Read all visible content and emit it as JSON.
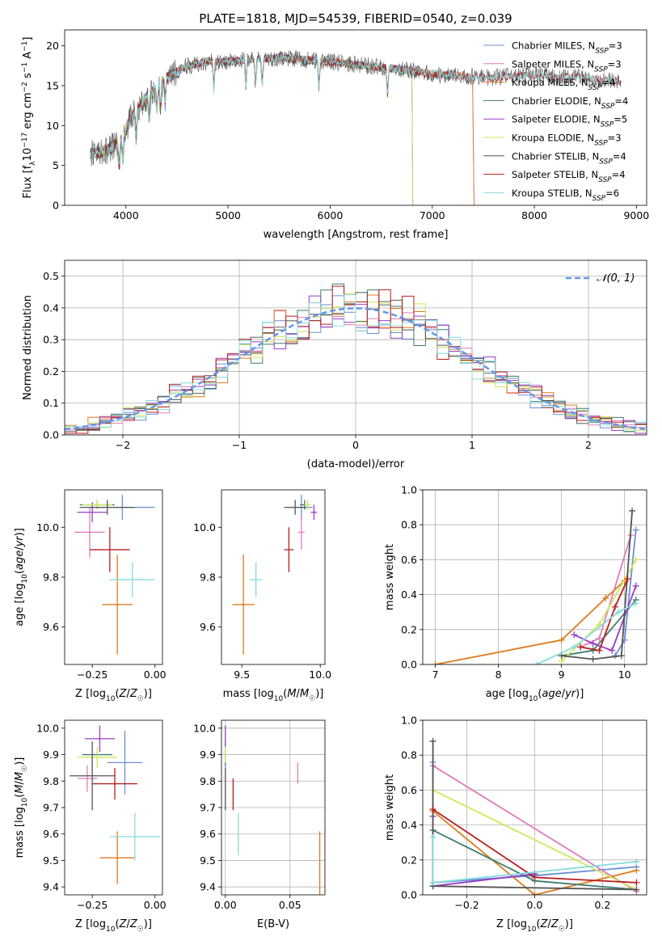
{
  "figure": {
    "title": "PLATE=1818, MJD=54539, FIBERID=0540, z=0.039"
  },
  "colors": {
    "Chabrier MILES": "#6a8fd2",
    "Salpeter MILES": "#e27bbd",
    "Kroupa MILES": "#e07a1e",
    "Chabrier ELODIE": "#3e7a6e",
    "Salpeter ELODIE": "#9a3cc8",
    "Kroupa ELODIE": "#cfe85a",
    "Chabrier STELIB": "#555555",
    "Salpeter STELIB": "#b81e1e",
    "Kroupa STELIB": "#84dcdc",
    "normal": "#6495ed"
  },
  "chart_data": [
    {
      "panel": "spectrum",
      "type": "line",
      "xlabel": "wavelength [Angstrom, rest frame]",
      "ylabel": "Flux [f_λ 10^-17 erg cm^-2 s^-1 A^-1]",
      "xlim": [
        3400,
        9100
      ],
      "ylim": [
        0,
        22
      ],
      "xticks": [
        "4000",
        "5000",
        "6000",
        "7000",
        "8000",
        "9000"
      ],
      "yticks": [
        "0",
        "5",
        "10",
        "15",
        "20"
      ],
      "legend_position": "top-right",
      "legend": [
        {
          "name": "Chabrier MILES",
          "nssp": "3"
        },
        {
          "name": "Salpeter MILES",
          "nssp": "3"
        },
        {
          "name": "Kroupa MILES",
          "nssp": "4"
        },
        {
          "name": "Chabrier ELODIE",
          "nssp": "4"
        },
        {
          "name": "Salpeter ELODIE",
          "nssp": "5"
        },
        {
          "name": "Kroupa ELODIE",
          "nssp": "3"
        },
        {
          "name": "Chabrier STELIB",
          "nssp": "4"
        },
        {
          "name": "Salpeter STELIB",
          "nssp": "4"
        },
        {
          "name": "Kroupa STELIB",
          "nssp": "6"
        }
      ],
      "continuum": {
        "x": [
          3650,
          3800,
          3950,
          4050,
          4200,
          4400,
          4600,
          4800,
          5000,
          5200,
          5500,
          6000,
          6500,
          7000,
          7500,
          8000,
          8500,
          8850
        ],
        "y": [
          6.5,
          6.8,
          8.0,
          11.0,
          13.5,
          16.0,
          17.5,
          18.0,
          18.0,
          18.3,
          18.5,
          18.0,
          17.3,
          16.5,
          16.0,
          16.3,
          16.0,
          15.5
        ]
      },
      "xrange_by_model": {
        "MILES": [
          3650,
          7400
        ],
        "ELODIE": [
          3650,
          6800
        ],
        "STELIB": [
          3650,
          8850
        ]
      }
    },
    {
      "panel": "residual-histogram",
      "type": "histogram",
      "xlabel": "(data-model)/error",
      "ylabel": "Normed distribution",
      "xlim": [
        -2.5,
        2.5
      ],
      "ylim": [
        0,
        0.55
      ],
      "xticks": [
        "−2",
        "−1",
        "0",
        "1",
        "2"
      ],
      "yticks": [
        "0.0",
        "0.1",
        "0.2",
        "0.3",
        "0.4",
        "0.5"
      ],
      "grid": true,
      "legend_position": "top-right",
      "legend_label": "𝒩(0, 1)",
      "bin_width": 0.1,
      "reference_curve": "normal(0,1)"
    },
    {
      "panel": "age-vs-Z",
      "type": "errorbar",
      "xlabel": "Z [log10(Z/Z☉)]",
      "ylabel": "age  [log10(age/yr)]",
      "xlim": [
        -0.36,
        0.03
      ],
      "ylim": [
        9.45,
        10.15
      ],
      "xticks": [
        "−0.25",
        "0.00"
      ],
      "yticks": [
        "9.6",
        "9.8",
        "10.0"
      ],
      "points": [
        {
          "model": "Chabrier MILES",
          "x": -0.13,
          "xerr": 0.13,
          "y": 10.08,
          "yerr": 0.05
        },
        {
          "model": "Salpeter MILES",
          "x": -0.26,
          "xerr": 0.06,
          "y": 9.98,
          "yerr": 0.1
        },
        {
          "model": "Kroupa MILES",
          "x": -0.15,
          "xerr": 0.06,
          "y": 9.69,
          "yerr": 0.2
        },
        {
          "model": "Chabrier ELODIE",
          "x": -0.23,
          "xerr": 0.07,
          "y": 10.09,
          "yerr": 0.02
        },
        {
          "model": "Salpeter ELODIE",
          "x": -0.25,
          "xerr": 0.06,
          "y": 10.06,
          "yerr": 0.04
        },
        {
          "model": "Kroupa ELODIE",
          "x": -0.23,
          "xerr": 0.06,
          "y": 10.09,
          "yerr": 0.02
        },
        {
          "model": "Chabrier STELIB",
          "x": -0.19,
          "xerr": 0.11,
          "y": 10.08,
          "yerr": 0.03
        },
        {
          "model": "Salpeter STELIB",
          "x": -0.18,
          "xerr": 0.08,
          "y": 9.91,
          "yerr": 0.09
        },
        {
          "model": "Kroupa STELIB",
          "x": -0.09,
          "xerr": 0.09,
          "y": 9.79,
          "yerr": 0.07
        }
      ]
    },
    {
      "panel": "age-vs-mass",
      "type": "errorbar",
      "xlabel": "mass [log10(M/M☉)]",
      "ylabel": "",
      "xlim": [
        9.37,
        10.03
      ],
      "ylim": [
        9.45,
        10.15
      ],
      "xticks": [
        "9.5",
        "10.0"
      ],
      "yticks": [
        "9.6",
        "9.8",
        "10.0"
      ],
      "points": [
        {
          "model": "Chabrier MILES",
          "x": 9.88,
          "xerr": 0.07,
          "y": 10.08,
          "yerr": 0.05
        },
        {
          "model": "Salpeter MILES",
          "x": 9.88,
          "xerr": 0.02,
          "y": 9.98,
          "yerr": 0.07
        },
        {
          "model": "Kroupa MILES",
          "x": 9.51,
          "xerr": 0.07,
          "y": 9.69,
          "yerr": 0.2
        },
        {
          "model": "Chabrier ELODIE",
          "x": 9.9,
          "xerr": 0.03,
          "y": 10.09,
          "yerr": 0.02
        },
        {
          "model": "Salpeter ELODIE",
          "x": 9.96,
          "xerr": 0.02,
          "y": 10.06,
          "yerr": 0.03
        },
        {
          "model": "Kroupa ELODIE",
          "x": 9.92,
          "xerr": 0.02,
          "y": 10.09,
          "yerr": 0.02
        },
        {
          "model": "Chabrier STELIB",
          "x": 9.84,
          "xerr": 0.07,
          "y": 10.08,
          "yerr": 0.03
        },
        {
          "model": "Salpeter STELIB",
          "x": 9.8,
          "xerr": 0.03,
          "y": 9.91,
          "yerr": 0.09
        },
        {
          "model": "Kroupa STELIB",
          "x": 9.59,
          "xerr": 0.04,
          "y": 9.79,
          "yerr": 0.07
        }
      ]
    },
    {
      "panel": "mass-weight-vs-age",
      "type": "line",
      "xlabel": "age  [log10(age/yr)]",
      "ylabel": "mass weight",
      "xlim": [
        6.8,
        10.35
      ],
      "ylim": [
        0,
        1.0
      ],
      "xticks": [
        "7",
        "8",
        "9",
        "10"
      ],
      "yticks": [
        "0.0",
        "0.2",
        "0.4",
        "0.6",
        "0.8",
        "1.0"
      ],
      "grid": true,
      "series": [
        {
          "model": "Chabrier MILES",
          "x": [
            9.85,
            10.0,
            10.18
          ],
          "y": [
            0.05,
            0.14,
            0.77
          ]
        },
        {
          "model": "Salpeter MILES",
          "x": [
            9.3,
            9.6,
            10.1
          ],
          "y": [
            0.1,
            0.15,
            0.74
          ]
        },
        {
          "model": "Kroupa MILES",
          "x": [
            7.0,
            9.0,
            9.7,
            10.0
          ],
          "y": [
            0.0,
            0.14,
            0.38,
            0.48
          ]
        },
        {
          "model": "Chabrier ELODIE",
          "x": [
            9.0,
            9.5,
            10.18
          ],
          "y": [
            0.05,
            0.08,
            0.37
          ]
        },
        {
          "model": "Salpeter ELODIE",
          "x": [
            9.2,
            9.5,
            9.8,
            10.18
          ],
          "y": [
            0.17,
            0.12,
            0.08,
            0.45
          ]
        },
        {
          "model": "Kroupa ELODIE",
          "x": [
            9.0,
            9.6,
            10.18
          ],
          "y": [
            0.02,
            0.23,
            0.6
          ]
        },
        {
          "model": "Chabrier STELIB",
          "x": [
            9.0,
            9.5,
            9.95,
            10.12
          ],
          "y": [
            0.05,
            0.03,
            0.05,
            0.88
          ]
        },
        {
          "model": "Salpeter STELIB",
          "x": [
            9.3,
            9.6,
            9.85,
            10.05
          ],
          "y": [
            0.1,
            0.08,
            0.33,
            0.49
          ]
        },
        {
          "model": "Kroupa STELIB",
          "x": [
            8.6,
            9.2,
            9.9,
            10.18
          ],
          "y": [
            0.0,
            0.1,
            0.3,
            0.35
          ]
        }
      ]
    },
    {
      "panel": "mass-vs-Z",
      "type": "errorbar",
      "xlabel": "Z [log10(Z/Z☉)]",
      "ylabel": "mass [log10(M/M☉)]",
      "xlim": [
        -0.36,
        0.03
      ],
      "ylim": [
        9.37,
        10.03
      ],
      "xticks": [
        "−0.25",
        "0.00"
      ],
      "yticks": [
        "9.4",
        "9.5",
        "9.6",
        "9.7",
        "9.8",
        "9.9",
        "10.0"
      ],
      "points": [
        {
          "model": "Chabrier MILES",
          "x": -0.12,
          "xerr": 0.07,
          "y": 9.87,
          "yerr": 0.12
        },
        {
          "model": "Salpeter MILES",
          "x": -0.27,
          "xerr": 0.04,
          "y": 9.81,
          "yerr": 0.05
        },
        {
          "model": "Kroupa MILES",
          "x": -0.15,
          "xerr": 0.07,
          "y": 9.51,
          "yerr": 0.1
        },
        {
          "model": "Chabrier ELODIE",
          "x": -0.23,
          "xerr": 0.06,
          "y": 9.9,
          "yerr": 0.01
        },
        {
          "model": "Salpeter ELODIE",
          "x": -0.22,
          "xerr": 0.06,
          "y": 9.96,
          "yerr": 0.05
        },
        {
          "model": "Kroupa ELODIE",
          "x": -0.23,
          "xerr": 0.08,
          "y": 9.89,
          "yerr": 0.04
        },
        {
          "model": "Chabrier STELIB",
          "x": -0.25,
          "xerr": 0.09,
          "y": 9.82,
          "yerr": 0.13
        },
        {
          "model": "Salpeter STELIB",
          "x": -0.16,
          "xerr": 0.09,
          "y": 9.79,
          "yerr": 0.06
        },
        {
          "model": "Kroupa STELIB",
          "x": -0.08,
          "xerr": 0.1,
          "y": 9.59,
          "yerr": 0.09
        }
      ]
    },
    {
      "panel": "mass-vs-EBV",
      "type": "errorbar",
      "xlabel": "E(B-V)",
      "ylabel": "",
      "xlim": [
        -0.003,
        0.077
      ],
      "ylim": [
        9.37,
        10.03
      ],
      "xticks": [
        "0.00",
        "0.05"
      ],
      "yticks": [
        "9.4",
        "9.5",
        "9.6",
        "9.7",
        "9.8",
        "9.9",
        "10.0"
      ],
      "grid": true,
      "points": [
        {
          "model": "Chabrier MILES",
          "x": 0.0,
          "y": 9.9,
          "yerr": 0.05
        },
        {
          "model": "Salpeter MILES",
          "x": 0.056,
          "y": 9.83,
          "yerr": 0.04
        },
        {
          "model": "Kroupa MILES",
          "x": 0.073,
          "y": 9.49,
          "yerr": 0.12
        },
        {
          "model": "Chabrier ELODIE",
          "x": 0.0,
          "y": 9.88,
          "yerr": 0.02
        },
        {
          "model": "Salpeter ELODIE",
          "x": 0.0,
          "y": 9.97,
          "yerr": 0.04
        },
        {
          "model": "Kroupa ELODIE",
          "x": 0.0,
          "y": 9.9,
          "yerr": 0.03
        },
        {
          "model": "Chabrier STELIB",
          "x": 0.0,
          "y": 9.77,
          "yerr": 0.08
        },
        {
          "model": "Salpeter STELIB",
          "x": 0.006,
          "y": 9.75,
          "yerr": 0.06
        },
        {
          "model": "Kroupa STELIB",
          "x": 0.01,
          "y": 9.6,
          "yerr": 0.08
        }
      ]
    },
    {
      "panel": "mass-weight-vs-Z",
      "type": "line",
      "xlabel": "Z [log10(Z/Z☉)]",
      "ylabel": "mass weight",
      "xlim": [
        -0.33,
        0.33
      ],
      "ylim": [
        0,
        1.0
      ],
      "xticks": [
        "−0.2",
        "0.0",
        "0.2"
      ],
      "yticks": [
        "0.0",
        "0.2",
        "0.4",
        "0.6",
        "0.8",
        "1.0"
      ],
      "grid": true,
      "series": [
        {
          "model": "Chabrier MILES",
          "x": [
            -0.3,
            -0.3,
            0.0,
            0.3
          ],
          "y": [
            0.76,
            0.07,
            0.11,
            0.16
          ]
        },
        {
          "model": "Salpeter MILES",
          "x": [
            -0.3,
            0.3
          ],
          "y": [
            0.74,
            0.02
          ]
        },
        {
          "model": "Kroupa MILES",
          "x": [
            -0.3,
            0.0,
            0.3
          ],
          "y": [
            0.48,
            0.0,
            0.14
          ]
        },
        {
          "model": "Chabrier ELODIE",
          "x": [
            -0.3,
            0.0,
            0.3
          ],
          "y": [
            0.37,
            0.08,
            0.03
          ]
        },
        {
          "model": "Salpeter ELODIE",
          "x": [
            -0.3,
            -0.3,
            0.0
          ],
          "y": [
            0.45,
            0.05,
            0.12
          ]
        },
        {
          "model": "Kroupa ELODIE",
          "x": [
            -0.3,
            0.3
          ],
          "y": [
            0.6,
            0.03
          ]
        },
        {
          "model": "Chabrier STELIB",
          "x": [
            -0.3,
            -0.3,
            0.3
          ],
          "y": [
            0.88,
            0.05,
            0.03
          ]
        },
        {
          "model": "Salpeter STELIB",
          "x": [
            -0.3,
            0.0,
            0.3
          ],
          "y": [
            0.49,
            0.1,
            0.07
          ]
        },
        {
          "model": "Kroupa STELIB",
          "x": [
            -0.3,
            -0.3,
            0.3
          ],
          "y": [
            0.33,
            0.07,
            0.19
          ]
        }
      ]
    }
  ]
}
